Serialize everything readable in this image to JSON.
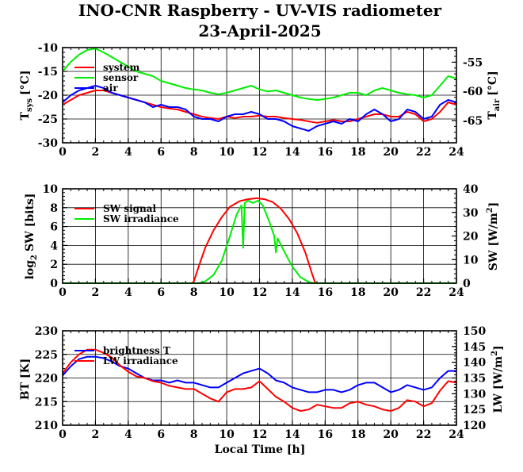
{
  "title": "INO-CNR Raspberry - UV-VIS radiometer",
  "subtitle": "23-April-2025",
  "chart_data": [
    {
      "type": "line",
      "panel": "temperature",
      "xlabel": "",
      "ylabel_left": "T",
      "ylabel_left_sub": "sys",
      "ylabel_left_unit": "[°C]",
      "ylabel_right": "T",
      "ylabel_right_sub": "air",
      "ylabel_right_unit": "[°C]",
      "xlim": [
        0,
        24
      ],
      "ylim_left": [
        -30,
        -10
      ],
      "ylim_right": [
        -68.8,
        -52.5
      ],
      "x_ticks": [
        "0",
        "2",
        "4",
        "6",
        "8",
        "10",
        "12",
        "14",
        "16",
        "18",
        "20",
        "22",
        "24"
      ],
      "y_left_ticks": [
        "-10",
        "-15",
        "-20",
        "-25",
        "-30"
      ],
      "y_right_ticks": [
        "-55",
        "-60",
        "-65"
      ],
      "grid": true,
      "legend_position": "top-left",
      "series": [
        {
          "name": "system",
          "color": "#ff0000",
          "axis": "left",
          "x": [
            0,
            0.5,
            1,
            1.5,
            2,
            2.5,
            3,
            3.5,
            4,
            4.5,
            5,
            5.5,
            6,
            6.5,
            7,
            7.5,
            8,
            8.5,
            9,
            9.5,
            10,
            10.5,
            11,
            11.5,
            12,
            12.5,
            13,
            13.5,
            14,
            14.5,
            15,
            15.5,
            16,
            16.5,
            17,
            17.5,
            18,
            18.5,
            19,
            19.5,
            20,
            20.5,
            21,
            21.5,
            22,
            22.5,
            23,
            23.5,
            24
          ],
          "y": [
            -22,
            -21,
            -20,
            -19.5,
            -19,
            -19,
            -19.5,
            -20,
            -20.5,
            -21,
            -21.5,
            -22,
            -22.5,
            -22.8,
            -23,
            -23.5,
            -24,
            -24.5,
            -24.8,
            -25,
            -24.5,
            -24.8,
            -24.5,
            -24.5,
            -24.3,
            -24.5,
            -24.5,
            -24.8,
            -25,
            -25.2,
            -25.5,
            -25.8,
            -25.5,
            -25.2,
            -25.5,
            -25.5,
            -25,
            -24.5,
            -24,
            -24,
            -24.5,
            -24.5,
            -23.5,
            -24,
            -25.5,
            -25,
            -23.5,
            -21.5,
            -22
          ]
        },
        {
          "name": "sensor",
          "color": "#00ee00",
          "axis": "left",
          "x": [
            0,
            0.5,
            1,
            1.5,
            2,
            2.5,
            3,
            3.5,
            4,
            4.5,
            5,
            5.5,
            6,
            6.5,
            7,
            7.5,
            8,
            8.5,
            9,
            9.5,
            10,
            10.5,
            11,
            11.5,
            12,
            12.5,
            13,
            13.5,
            14,
            14.5,
            15,
            15.5,
            16,
            16.5,
            17,
            17.5,
            18,
            18.5,
            19,
            19.5,
            20,
            20.5,
            21,
            21.5,
            22,
            22.5,
            23,
            23.5,
            24
          ],
          "y": [
            -15,
            -13,
            -11.5,
            -10.5,
            -10.2,
            -11,
            -12,
            -13,
            -14,
            -15,
            -15.5,
            -16,
            -17,
            -17.5,
            -18,
            -18.5,
            -18.8,
            -19,
            -19.5,
            -19.8,
            -19.5,
            -19,
            -18.5,
            -18,
            -18.8,
            -19.2,
            -19,
            -19.5,
            -20,
            -20.5,
            -20.8,
            -21,
            -20.8,
            -20.5,
            -20,
            -19.5,
            -19.5,
            -20,
            -19,
            -18.5,
            -19,
            -19.5,
            -19.8,
            -20,
            -20.5,
            -20,
            -18,
            -16,
            -16.5
          ]
        },
        {
          "name": "air",
          "color": "#0000ff",
          "axis": "left",
          "x": [
            0,
            0.5,
            1,
            1.5,
            2,
            2.5,
            3,
            3.5,
            4,
            4.5,
            5,
            5.5,
            6,
            6.5,
            7,
            7.5,
            8,
            8.5,
            9,
            9.5,
            10,
            10.5,
            11,
            11.5,
            12,
            12.5,
            13,
            13.5,
            14,
            14.5,
            15,
            15.5,
            16,
            16.5,
            17,
            17.5,
            18,
            18.5,
            19,
            19.5,
            20,
            20.5,
            21,
            21.5,
            22,
            22.5,
            23,
            23.5,
            24
          ],
          "y": [
            -21.5,
            -20,
            -19,
            -18.5,
            -18,
            -18.5,
            -19.5,
            -20,
            -20.5,
            -21,
            -21.5,
            -22.5,
            -22,
            -22.5,
            -22.5,
            -23,
            -24.5,
            -25,
            -25,
            -25.5,
            -24.5,
            -24,
            -24,
            -23.5,
            -24,
            -25,
            -25,
            -25.5,
            -26.5,
            -27,
            -27.5,
            -26.5,
            -26,
            -25.5,
            -26,
            -25,
            -25.5,
            -24,
            -23,
            -24,
            -25.5,
            -25,
            -23,
            -23.5,
            -25,
            -24.5,
            -22,
            -21,
            -21.5
          ]
        }
      ]
    },
    {
      "type": "line",
      "panel": "shortwave",
      "xlabel": "",
      "ylabel_left": "log",
      "ylabel_left_sub": "2",
      "ylabel_left_unit": "SW [bits]",
      "ylabel_right": "SW [W/m",
      "ylabel_right_sup": "2",
      "ylabel_right_close": "]",
      "xlim": [
        0,
        24
      ],
      "ylim_left": [
        0,
        10
      ],
      "ylim_right": [
        0,
        40
      ],
      "x_ticks": [
        "0",
        "2",
        "4",
        "6",
        "8",
        "10",
        "12",
        "14",
        "16",
        "18",
        "20",
        "22",
        "24"
      ],
      "y_left_ticks": [
        "10",
        "8",
        "6",
        "4",
        "2",
        "0"
      ],
      "y_right_ticks": [
        "40",
        "30",
        "20",
        "10",
        "0"
      ],
      "grid": true,
      "legend_position": "top-left",
      "series": [
        {
          "name": "SW signal",
          "color": "#ff0000",
          "axis": "left",
          "x": [
            0,
            7.9,
            8.0,
            8.3,
            8.7,
            9.2,
            9.7,
            10.2,
            10.8,
            11.3,
            11.8,
            12.3,
            12.8,
            13.3,
            13.8,
            14.3,
            14.8,
            15.2,
            15.4,
            24
          ],
          "y": [
            0,
            0,
            0.2,
            1.8,
            3.8,
            5.6,
            7.0,
            8.1,
            8.7,
            8.9,
            9.0,
            8.9,
            8.6,
            7.9,
            6.8,
            5.3,
            3.2,
            1.0,
            0,
            0
          ]
        },
        {
          "name": "SW irradiance",
          "color": "#00ee00",
          "axis": "right",
          "x": [
            0,
            8.3,
            8.7,
            9.2,
            9.7,
            10.2,
            10.6,
            10.9,
            11.0,
            11.1,
            11.3,
            11.6,
            11.9,
            12.2,
            12.6,
            12.9,
            13.0,
            13.1,
            13.5,
            14.0,
            14.5,
            15.0,
            15.3,
            24
          ],
          "y": [
            0,
            0,
            0.8,
            3.5,
            9.5,
            20.0,
            29.0,
            33.0,
            15.0,
            34.0,
            35.0,
            34.0,
            35.0,
            33.0,
            26.0,
            20.0,
            13.0,
            19.0,
            13.5,
            7.0,
            2.5,
            0.5,
            0,
            0
          ]
        }
      ]
    },
    {
      "type": "line",
      "panel": "longwave",
      "xlabel": "Local Time [h]",
      "ylabel_left": "BT [K]",
      "ylabel_right": "LW [W/m",
      "ylabel_right_sup": "2",
      "ylabel_right_close": "]",
      "xlim": [
        0,
        24
      ],
      "ylim_left": [
        210,
        230
      ],
      "ylim_right": [
        120,
        150
      ],
      "x_ticks": [
        "0",
        "2",
        "4",
        "6",
        "8",
        "10",
        "12",
        "14",
        "16",
        "18",
        "20",
        "22",
        "24"
      ],
      "y_left_ticks": [
        "230",
        "225",
        "220",
        "215",
        "210"
      ],
      "y_right_ticks": [
        "150",
        "145",
        "140",
        "135",
        "130",
        "125",
        "120"
      ],
      "grid": true,
      "legend_position": "top-left",
      "series": [
        {
          "name": "brightness T",
          "color": "#0000ff",
          "axis": "left",
          "x": [
            0,
            0.5,
            1,
            1.5,
            2,
            2.5,
            3,
            3.5,
            4,
            4.5,
            5,
            5.5,
            6,
            6.5,
            7,
            7.5,
            8,
            8.5,
            9,
            9.5,
            10,
            10.5,
            11,
            11.5,
            12,
            12.5,
            13,
            13.5,
            14,
            14.5,
            15,
            15.5,
            16,
            16.5,
            17,
            17.5,
            18,
            18.5,
            19,
            19.5,
            20,
            20.5,
            21,
            21.5,
            22,
            22.5,
            23,
            23.5,
            24
          ],
          "y": [
            220.5,
            222.5,
            224,
            224.5,
            224.5,
            224.2,
            223.5,
            222.5,
            222,
            221,
            220,
            219.5,
            219.5,
            219,
            219.5,
            219,
            219,
            218.5,
            218,
            218,
            219,
            220,
            221,
            221.5,
            222,
            221,
            219.5,
            219,
            218,
            217.5,
            217,
            217,
            217.5,
            217.5,
            217,
            217.5,
            218.5,
            219,
            219,
            218,
            217,
            217.5,
            218.5,
            218,
            217.5,
            218,
            220,
            221.5,
            221.5
          ]
        },
        {
          "name": "LW irradiance",
          "color": "#ff0000",
          "axis": "right",
          "x": [
            0,
            0.5,
            1,
            1.5,
            2,
            2.5,
            3,
            3.5,
            4,
            4.5,
            5,
            5.5,
            6,
            6.5,
            7,
            7.5,
            8,
            8.5,
            9,
            9.5,
            10,
            10.5,
            11,
            11.5,
            12,
            12.5,
            13,
            13.5,
            14,
            14.5,
            15,
            15.5,
            16,
            16.5,
            17,
            17.5,
            18,
            18.5,
            19,
            19.5,
            20,
            20.5,
            21,
            21.5,
            22,
            22.5,
            23,
            23.5,
            24
          ],
          "y": [
            136.5,
            140,
            142.5,
            144,
            144,
            143,
            141.5,
            139,
            137,
            135.5,
            135,
            134,
            133.5,
            132.5,
            132,
            131.5,
            131.5,
            130,
            128.5,
            127.5,
            130.5,
            131.5,
            131.5,
            132,
            134,
            131.5,
            129,
            127.5,
            125.5,
            124.5,
            125,
            126.5,
            126,
            125.5,
            125.5,
            127,
            127.5,
            126.5,
            126,
            125,
            124.5,
            125.5,
            128,
            127.5,
            126,
            127,
            131,
            134,
            133.5
          ]
        }
      ]
    }
  ]
}
